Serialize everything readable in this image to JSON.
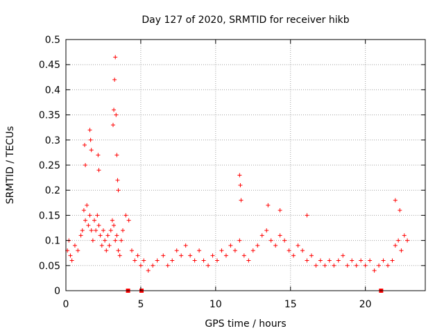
{
  "chart_data": {
    "type": "scatter",
    "title": "Day 127 of 2020, SRMTID for receiver hikb",
    "xlabel": "GPS time / hours",
    "ylabel": "SRMTID / TECUs",
    "xlim": [
      0,
      24
    ],
    "ylim": [
      0,
      0.5
    ],
    "x_ticks": [
      0,
      5,
      10,
      15,
      20
    ],
    "x_tick_labels": [
      "0",
      "5",
      "10",
      "15",
      "20"
    ],
    "y_ticks": [
      0,
      0.05,
      0.1,
      0.15,
      0.2,
      0.25,
      0.3,
      0.35,
      0.4,
      0.45,
      0.5
    ],
    "y_tick_labels": [
      "0",
      "0.05",
      "0.1",
      "0.15",
      "0.2",
      "0.25",
      "0.3",
      "0.35",
      "0.4",
      "0.45",
      "0.5"
    ],
    "grid": true,
    "marker": "+",
    "color": "#ff0000",
    "series": [
      {
        "name": "SRMTID",
        "x": [
          0.1,
          0.2,
          0.3,
          0.4,
          0.6,
          0.8,
          1.0,
          1.1,
          1.2,
          1.3,
          1.4,
          1.5,
          1.6,
          1.7,
          1.8,
          1.9,
          2.0,
          2.1,
          2.2,
          2.3,
          2.4,
          2.5,
          2.6,
          2.7,
          2.8,
          2.9,
          3.0,
          3.1,
          3.2,
          3.3,
          3.4,
          3.5,
          3.6,
          3.7,
          3.8,
          4.0,
          4.2,
          4.4,
          4.6,
          4.8,
          5.0,
          5.2,
          5.5,
          5.8,
          6.1,
          6.5,
          6.8,
          7.1,
          7.4,
          7.7,
          8.0,
          8.3,
          8.6,
          8.9,
          9.2,
          9.5,
          9.8,
          10.1,
          10.4,
          10.7,
          11.0,
          11.3,
          11.6,
          11.9,
          12.2,
          12.5,
          12.8,
          13.1,
          13.4,
          13.7,
          14.0,
          14.3,
          14.6,
          14.9,
          15.2,
          15.5,
          15.8,
          16.1,
          16.4,
          16.7,
          17.0,
          17.3,
          17.6,
          17.9,
          18.2,
          18.5,
          18.8,
          19.1,
          19.4,
          19.7,
          20.0,
          20.3,
          20.6,
          20.9,
          21.2,
          21.5,
          21.8,
          22.0,
          22.2,
          22.4,
          22.6,
          22.8,
          1.25,
          1.3,
          1.6,
          1.65,
          1.7,
          2.15,
          2.2,
          3.15,
          3.2,
          3.25,
          3.3,
          3.35,
          3.4,
          3.45,
          3.5,
          11.6,
          11.65,
          11.7,
          13.5,
          14.3,
          16.1,
          22.0,
          22.3
        ],
        "y": [
          0.08,
          0.1,
          0.07,
          0.06,
          0.09,
          0.08,
          0.11,
          0.12,
          0.16,
          0.14,
          0.17,
          0.13,
          0.15,
          0.12,
          0.1,
          0.14,
          0.12,
          0.15,
          0.13,
          0.11,
          0.09,
          0.12,
          0.1,
          0.08,
          0.11,
          0.09,
          0.12,
          0.14,
          0.13,
          0.1,
          0.11,
          0.08,
          0.07,
          0.1,
          0.12,
          0.15,
          0.14,
          0.08,
          0.06,
          0.07,
          0.05,
          0.06,
          0.04,
          0.05,
          0.06,
          0.07,
          0.05,
          0.06,
          0.08,
          0.07,
          0.09,
          0.07,
          0.06,
          0.08,
          0.06,
          0.05,
          0.07,
          0.06,
          0.08,
          0.07,
          0.09,
          0.08,
          0.1,
          0.07,
          0.06,
          0.08,
          0.09,
          0.11,
          0.12,
          0.1,
          0.09,
          0.11,
          0.1,
          0.08,
          0.07,
          0.09,
          0.08,
          0.06,
          0.07,
          0.05,
          0.06,
          0.05,
          0.06,
          0.05,
          0.06,
          0.07,
          0.05,
          0.06,
          0.05,
          0.06,
          0.05,
          0.06,
          0.04,
          0.05,
          0.06,
          0.05,
          0.06,
          0.09,
          0.1,
          0.08,
          0.11,
          0.1,
          0.29,
          0.25,
          0.32,
          0.3,
          0.28,
          0.27,
          0.24,
          0.33,
          0.36,
          0.42,
          0.465,
          0.35,
          0.27,
          0.22,
          0.2,
          0.23,
          0.21,
          0.18,
          0.17,
          0.16,
          0.15,
          0.18,
          0.16
        ]
      }
    ],
    "bottom_markers_x": [
      4.15,
      5.05,
      21.05
    ]
  }
}
